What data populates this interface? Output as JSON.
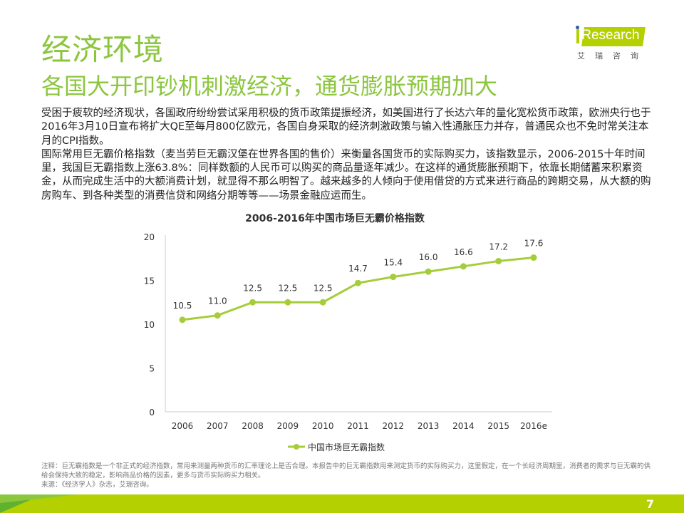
{
  "title": "经济环境",
  "subtitle": "各国大开印钞机刺激经济，通货膨胀预期加大",
  "logo": {
    "name": "iResearch",
    "cn": "艾瑞咨询"
  },
  "paragraphs": [
    "受困于疲软的经济现状，各国政府纷纷尝试采用积极的货币政策提振经济，如美国进行了长达六年的量化宽松货币政策，欧洲央行也于2016年3月10日宣布将扩大QE至每月800亿欧元，各国自身采取的经济刺激政策与输入性通胀压力并存，普通民众也不免时常关注本月的CPI指数。",
    "国际常用巨无霸价格指数（麦当劳巨无霸汉堡在世界各国的售价）来衡量各国货币的实际购买力，该指数显示，2006-2015十年时间里，我国巨无霸指数上涨63.8%：同样数额的人民币可以购买的商品量逐年减少。在这样的通货膨胀预期下，依靠长期储蓄来积累资金，从而完成生活中的大额消费计划，就显得不那么明智了。越来越多的人倾向于使用借贷的方式来进行商品的跨期交易，从大额的购房购车、到各种类型的消费信贷和网络分期等等——场景金融应运而生。"
  ],
  "chart_data": {
    "type": "line",
    "title": "2006-2016年中国市场巨无霸价格指数",
    "categories": [
      "2006",
      "2007",
      "2008",
      "2009",
      "2010",
      "2011",
      "2012",
      "2013",
      "2014",
      "2015",
      "2016e"
    ],
    "series": [
      {
        "name": "中国市场巨无霸指数",
        "values": [
          10.5,
          11.0,
          12.5,
          12.5,
          12.5,
          14.7,
          15.4,
          16.0,
          16.6,
          17.2,
          17.6
        ]
      }
    ],
    "value_labels": [
      "10.5",
      "11.0",
      "12.5",
      "12.5",
      "12.5",
      "14.7",
      "15.4",
      "16.0",
      "16.6",
      "17.2",
      "17.6"
    ],
    "yticks": [
      "0",
      "5",
      "10",
      "15",
      "20"
    ],
    "ylim": [
      0,
      20
    ],
    "legend": "bottom",
    "color": "#a5cd39"
  },
  "note": "注释：巨无霸指数是一个非正式的经济指数，常用来测量两种货币的汇率理论上是否合理。本报告中的巨无霸指数用来测定货币的实际购买力，这里假定，在一个长经济周期里，消费者的需求与巨无霸的供给会保持大致的稳定，影响商品价格的因素，更多与货币实际购买力相关。",
  "source": "来源：《经济学人》杂志，艾瑞咨询。",
  "page": "7"
}
